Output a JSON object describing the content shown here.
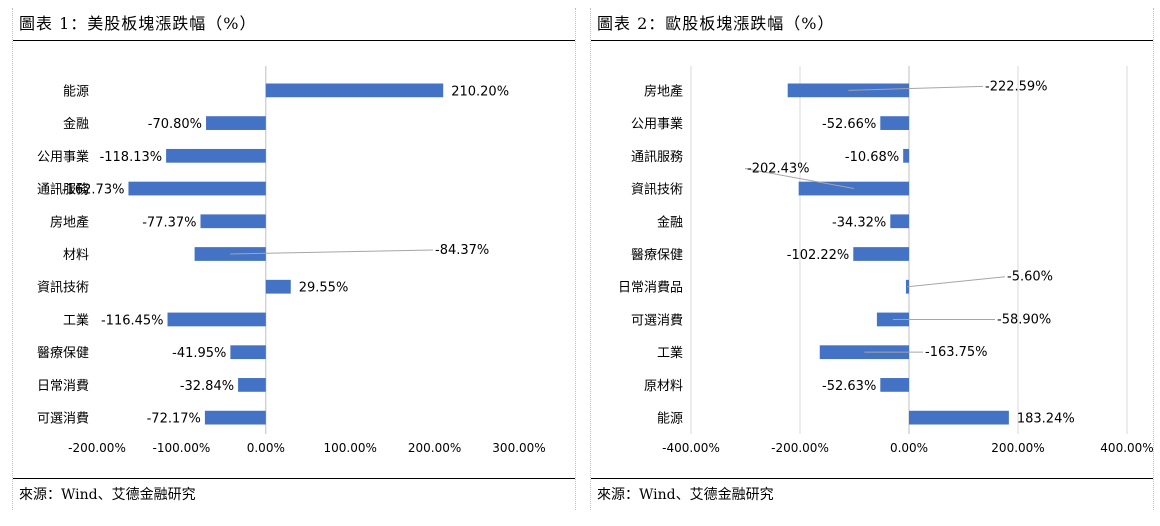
{
  "source": "來源：Wind、艾德金融研究",
  "chart_data": [
    {
      "type": "bar",
      "orientation": "horizontal",
      "title": "圖表 1：美股板塊漲跌幅（%）",
      "categories": [
        "能源",
        "金融",
        "公用事業",
        "通訊服務",
        "房地產",
        "材料",
        "資訊技術",
        "工業",
        "醫療保健",
        "日常消費",
        "可選消費"
      ],
      "values": [
        210.2,
        -70.8,
        -118.13,
        -162.73,
        -77.37,
        -84.37,
        29.55,
        -116.45,
        -41.95,
        -32.84,
        -72.17
      ],
      "value_labels": [
        "210.20%",
        "-70.80%",
        "-118.13%",
        "-162.73%",
        "-77.37%",
        "-84.37%",
        "29.55%",
        "-116.45%",
        "-41.95%",
        "-32.84%",
        "-72.17%"
      ],
      "xticks": [
        "-200.00%",
        "-100.00%",
        "0.00%",
        "100.00%",
        "200.00%",
        "300.00%"
      ],
      "xlim": [
        -200,
        300
      ],
      "bar_color": "#4472C4",
      "grid": false
    },
    {
      "type": "bar",
      "orientation": "horizontal",
      "title": "圖表 2：歐股板塊漲跌幅（%）",
      "categories": [
        "房地產",
        "公用事業",
        "通訊服務",
        "資訊技術",
        "金融",
        "醫療保健",
        "日常消費品",
        "可選消費",
        "工業",
        "原材料",
        "能源"
      ],
      "values": [
        -222.59,
        -52.66,
        -10.68,
        -202.43,
        -34.32,
        -102.22,
        -5.6,
        -58.9,
        -163.75,
        -52.63,
        183.24
      ],
      "value_labels": [
        "-222.59%",
        "-52.66%",
        "-10.68%",
        "-202.43%",
        "-34.32%",
        "-102.22%",
        "-5.60%",
        "-58.90%",
        "-163.75%",
        "-52.63%",
        "183.24%"
      ],
      "xticks": [
        "-400.00%",
        "-200.00%",
        "0.00%",
        "200.00%",
        "400.00%"
      ],
      "xlim": [
        -400,
        400
      ],
      "bar_color": "#4472C4",
      "grid": true
    }
  ]
}
